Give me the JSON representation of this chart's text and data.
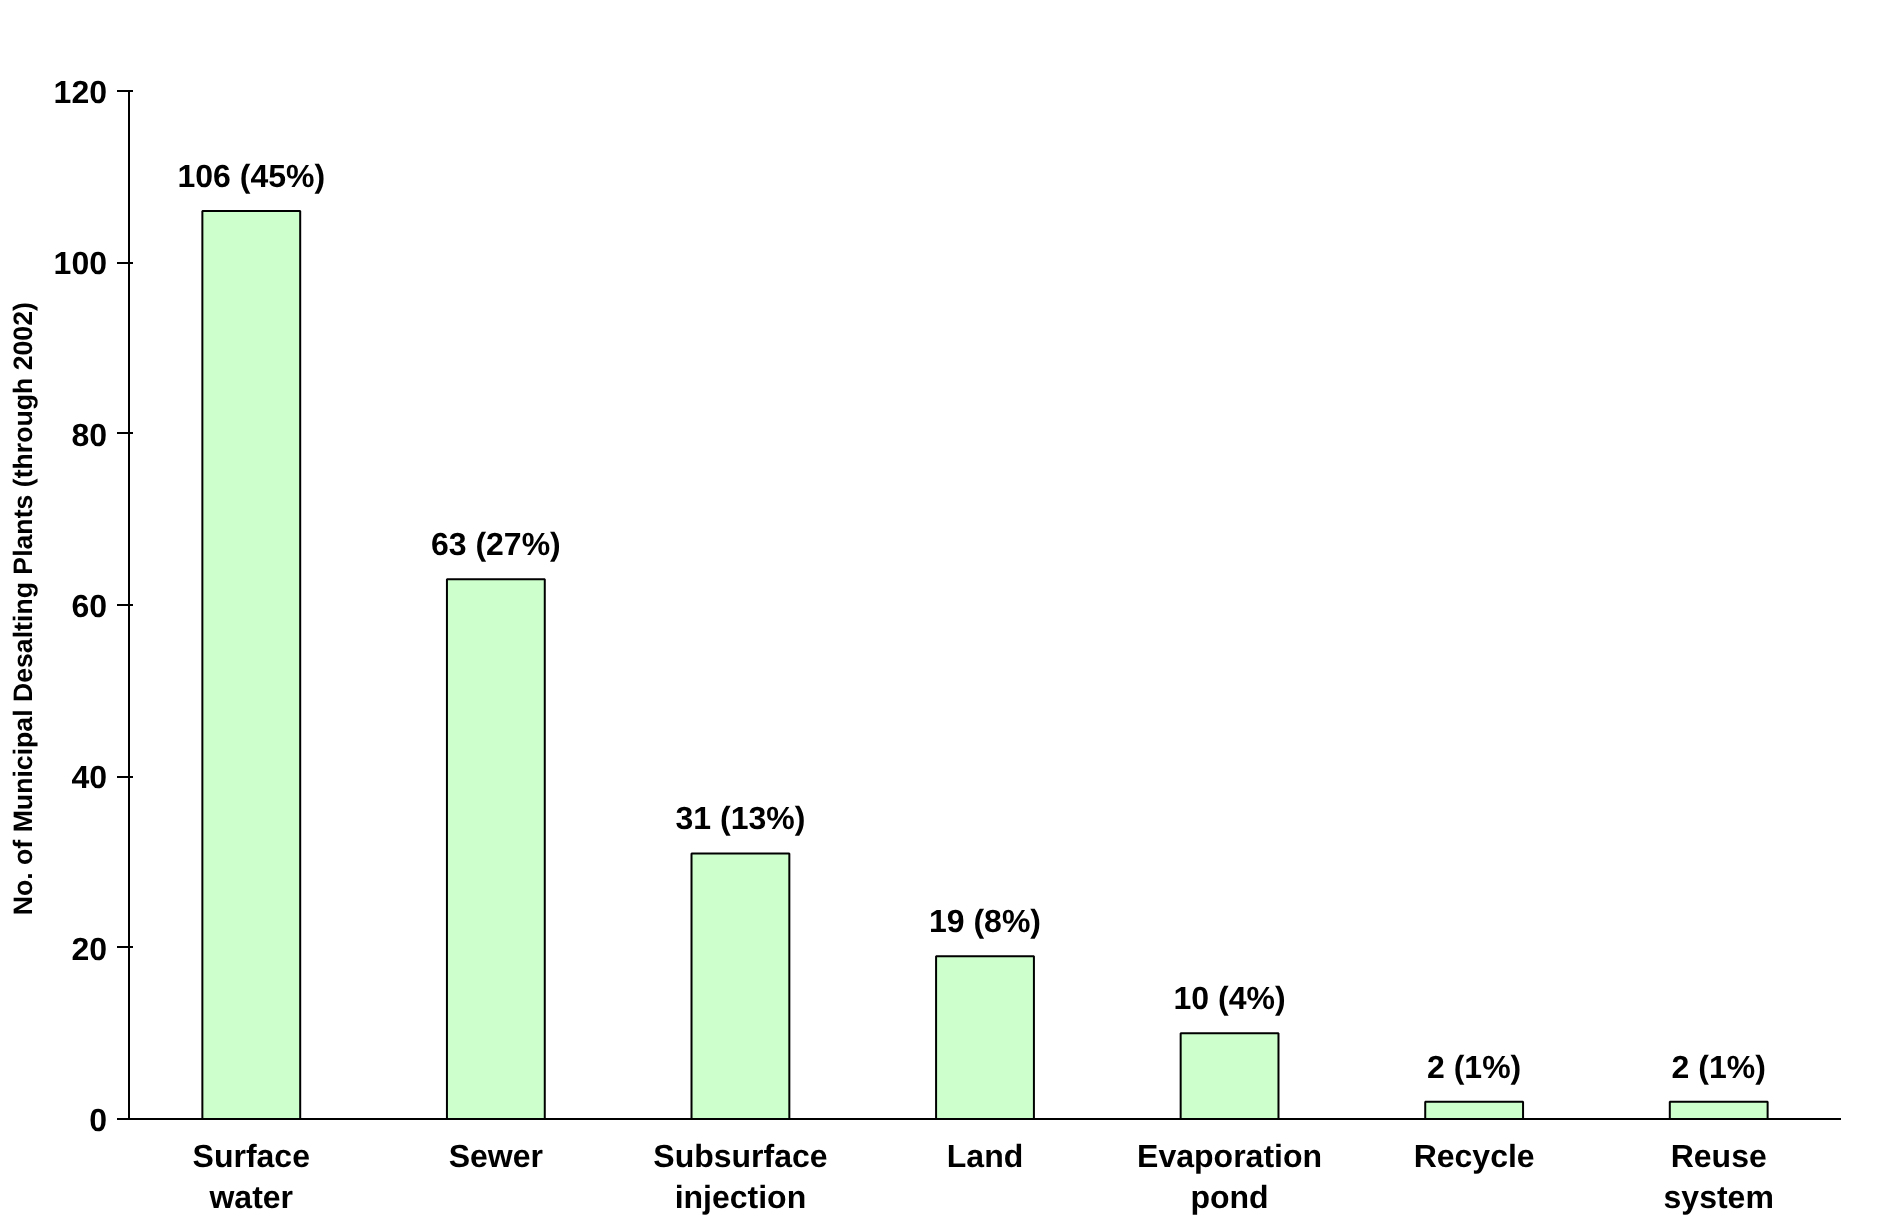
{
  "chart_data": {
    "type": "bar",
    "ylabel": "No. of Municipal Desalting  Plants (through 2002)",
    "categories": [
      "Surface water",
      "Sewer",
      "Subsurface injection",
      "Land",
      "Evaporation pond",
      "Recycle",
      "Reuse system"
    ],
    "values": [
      106,
      63,
      31,
      19,
      10,
      2,
      2
    ],
    "value_labels": [
      "106 (45%)",
      "63 (27%)",
      "31 (13%)",
      "19 (8%)",
      "10 (4%)",
      "2 (1%)",
      "2 (1%)"
    ],
    "color": "#ccffcc",
    "ylim": [
      0,
      120
    ],
    "yticks": [
      0,
      20,
      40,
      60,
      80,
      100,
      120
    ],
    "grid": false
  }
}
